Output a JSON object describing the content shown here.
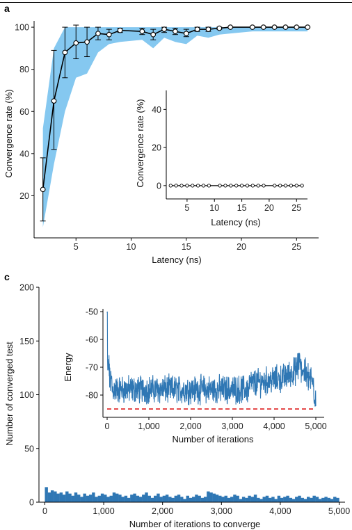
{
  "colors": {
    "band": "#85c8f0",
    "line": "#000000",
    "bar": "#2f77b4",
    "energy": "#2f77b4",
    "reference": "#e03030"
  },
  "panel_a": {
    "label": "a",
    "main": {
      "xlabel": "Latency (ns)",
      "ylabel": "Convergence rate (%)",
      "xticks": [
        "5",
        "10",
        "15",
        "20",
        "25"
      ],
      "yticks": [
        "20",
        "40",
        "60",
        "80",
        "100"
      ]
    },
    "inset": {
      "xlabel": "Latency (ns)",
      "ylabel": "Convergence rate (%)",
      "xticks": [
        "5",
        "10",
        "15",
        "20",
        "25"
      ],
      "yticks": [
        "0",
        "20",
        "40"
      ]
    }
  },
  "panel_c": {
    "label": "c",
    "main": {
      "xlabel": "Number of iterations to converge",
      "ylabel": "Number of converged test",
      "xticks": [
        "0",
        "1,000",
        "2,000",
        "3,000",
        "4,000",
        "5,000"
      ],
      "yticks": [
        "0",
        "50",
        "100",
        "150",
        "200"
      ]
    },
    "inset": {
      "xlabel": "Number of iterations",
      "ylabel": "Energy",
      "xticks": [
        "0",
        "1,000",
        "2,000",
        "3,000",
        "4,000",
        "5,000"
      ],
      "yticks": [
        "-50",
        "-60",
        "-70",
        "-80"
      ]
    }
  },
  "chart_data": [
    {
      "type": "line",
      "panel": "a",
      "x": [
        2,
        3,
        4,
        5,
        6,
        7,
        8,
        9,
        11,
        12,
        13,
        14,
        15,
        16,
        17,
        18,
        19,
        21,
        22,
        23,
        24,
        25,
        26
      ],
      "y": [
        23,
        65,
        88,
        92.5,
        93,
        97,
        96.5,
        98.5,
        98,
        96.5,
        99,
        98,
        97,
        99,
        99,
        99.5,
        100,
        100,
        100,
        100,
        100,
        100,
        100
      ],
      "yerr_low": [
        8,
        42,
        76,
        85,
        86,
        94,
        94,
        97.5,
        96.5,
        94,
        97.5,
        96.5,
        95.5,
        98,
        98,
        99,
        99.8,
        99.8,
        99.8,
        99.8,
        99.8,
        99.8,
        99.8
      ],
      "yerr_high": [
        38,
        89,
        100,
        101,
        100,
        100,
        99,
        99.5,
        99.5,
        99,
        100,
        99.5,
        99,
        100,
        100,
        100,
        100.2,
        100.2,
        100.2,
        100.2,
        100.2,
        100.2,
        100.2
      ],
      "band_low": [
        5,
        35,
        60,
        76,
        78,
        88,
        92,
        93,
        94,
        90,
        95,
        93,
        92,
        96,
        95,
        96.5,
        97,
        98,
        98,
        98,
        98,
        98,
        98
      ],
      "band_high": [
        52,
        90,
        100,
        100,
        100,
        100,
        100,
        100,
        100,
        100,
        100,
        100,
        100,
        100,
        100,
        100,
        100,
        100,
        100,
        100,
        100,
        100,
        100
      ],
      "xlim": [
        1.2,
        27
      ],
      "ylim": [
        0,
        103
      ],
      "xlabel": "Latency (ns)",
      "ylabel": "Convergence rate (%)"
    },
    {
      "type": "line",
      "panel": "a-inset",
      "x": [
        2,
        3,
        4,
        5,
        6,
        7,
        8,
        9,
        11,
        12,
        13,
        14,
        15,
        16,
        17,
        18,
        19,
        21,
        22,
        23,
        24,
        25,
        26
      ],
      "y": [
        0,
        0,
        0,
        0,
        0,
        0,
        0,
        0,
        0,
        0,
        0,
        0,
        0,
        0,
        0,
        0,
        0,
        0,
        0,
        0,
        0,
        0,
        0
      ],
      "xlim": [
        1.2,
        27
      ],
      "ylim": [
        -7,
        50
      ],
      "xlabel": "Latency (ns)",
      "ylabel": "Convergence rate (%)"
    },
    {
      "type": "bar",
      "panel": "c",
      "bin_width": 50,
      "bin_start": 0,
      "values": [
        14,
        9,
        11,
        10,
        8,
        9,
        7,
        10,
        8,
        6,
        9,
        7,
        5,
        8,
        6,
        7,
        9,
        5,
        6,
        8,
        7,
        5,
        6,
        9,
        8,
        7,
        5,
        6,
        4,
        7,
        8,
        6,
        5,
        7,
        9,
        6,
        4,
        6,
        8,
        5,
        6,
        7,
        5,
        4,
        6,
        7,
        5,
        3,
        6,
        4,
        5,
        7,
        6,
        4,
        5,
        10,
        9,
        8,
        7,
        6,
        5,
        6,
        4,
        5,
        7,
        6,
        3,
        5,
        4,
        6,
        5,
        7,
        4,
        3,
        5,
        6,
        4,
        5,
        3,
        6,
        4,
        5,
        6,
        4,
        3,
        5,
        6,
        4,
        3,
        5,
        4,
        6,
        5,
        3,
        4,
        5,
        4,
        3,
        5,
        4
      ],
      "xlim": [
        -100,
        5100
      ],
      "ylim": [
        0,
        200
      ],
      "xlabel": "Number of iterations to converge",
      "ylabel": "Number of converged test"
    },
    {
      "type": "line",
      "panel": "c-inset",
      "series": [
        {
          "name": "",
          "description": "energy trace: starts near -52, drops to about -76 by iteration 100, fluctuates between -84 and -71, rises to about -68 around iteration 4,600 then falls to -84 at 5,000"
        }
      ],
      "reference_line": -85,
      "xlim": [
        -100,
        5200
      ],
      "ylim": [
        -88,
        -49
      ],
      "xlabel": "Number of iterations",
      "ylabel": "Energy"
    }
  ]
}
